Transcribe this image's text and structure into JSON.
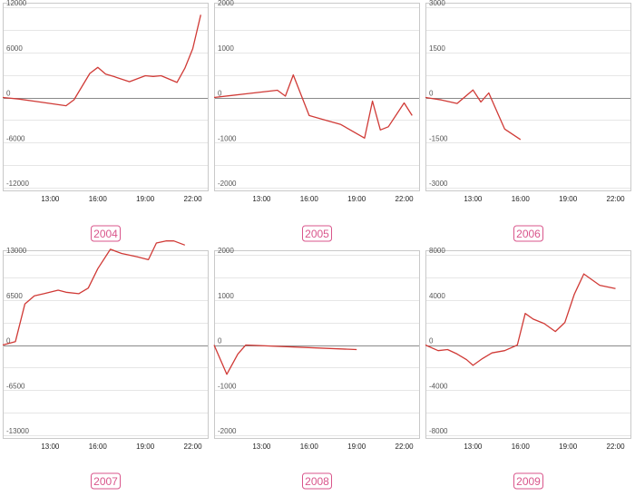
{
  "colors": {
    "line": "#d03a36",
    "grid": "#e6e6e6",
    "zero": "#8a8a8a",
    "border": "#c9c9c9",
    "badge": "#d9558b",
    "tick": "#555555"
  },
  "x_ticks": [
    "13:00",
    "16:00",
    "19:00",
    "22:00"
  ],
  "chart_data": [
    {
      "type": "line",
      "label": "2004",
      "y_ticks": [
        "12000",
        "6000",
        "0",
        "-6000",
        "-12000"
      ],
      "ylim": [
        -12000,
        12000
      ],
      "xlim": [
        10,
        23
      ],
      "x": [
        10,
        11,
        12,
        13,
        14,
        14.5,
        15.5,
        16,
        16.5,
        17,
        18,
        19,
        19.5,
        20,
        21,
        21.5,
        22,
        22.5
      ],
      "y": [
        0,
        -200,
        -500,
        -800,
        -1100,
        -300,
        3200,
        4000,
        3100,
        2800,
        2100,
        2900,
        2800,
        2900,
        2000,
        3900,
        6500,
        11000
      ]
    },
    {
      "type": "line",
      "label": "2005",
      "y_ticks": [
        "2000",
        "1000",
        "0",
        "-1000",
        "-2000"
      ],
      "ylim": [
        -2000,
        2000
      ],
      "xlim": [
        10,
        23
      ],
      "x": [
        10,
        12,
        14,
        14.5,
        15,
        16,
        17,
        18,
        19.5,
        20,
        20.5,
        21,
        22,
        22.5
      ],
      "y": [
        0,
        80,
        160,
        30,
        500,
        -400,
        -500,
        -600,
        -900,
        -80,
        -720,
        -650,
        -120,
        -400
      ]
    },
    {
      "type": "line",
      "label": "2006",
      "y_ticks": [
        "3000",
        "1500",
        "0",
        "-1500",
        "-3000"
      ],
      "ylim": [
        -3000,
        3000
      ],
      "xlim": [
        10,
        23
      ],
      "x": [
        10,
        11,
        12,
        13,
        13.5,
        14,
        15,
        16
      ],
      "y": [
        0,
        -80,
        -200,
        250,
        -150,
        150,
        -1050,
        -1400
      ]
    },
    {
      "type": "line",
      "label": "2007",
      "y_ticks": [
        "13000",
        "6500",
        "0",
        "-6500",
        "-13000"
      ],
      "ylim": [
        -13000,
        13000
      ],
      "xlim": [
        10,
        23
      ],
      "x": [
        10,
        10.8,
        11.4,
        12,
        12.6,
        13.5,
        14,
        14.8,
        15.4,
        16,
        16.8,
        17.5,
        18.5,
        19.2,
        19.7,
        20.3,
        20.8,
        21.5
      ],
      "y": [
        0,
        500,
        5900,
        7100,
        7400,
        7900,
        7600,
        7400,
        8200,
        11000,
        13800,
        13200,
        12700,
        12300,
        14700,
        15000,
        15000,
        14400
      ]
    },
    {
      "type": "line",
      "label": "2008",
      "y_ticks": [
        "2000",
        "1000",
        "0",
        "-1000",
        "-2000"
      ],
      "ylim": [
        -2000,
        2000
      ],
      "xlim": [
        10,
        23
      ],
      "x": [
        10,
        10.8,
        11.5,
        12,
        19
      ],
      "y": [
        0,
        -650,
        -200,
        0,
        -100
      ]
    },
    {
      "type": "line",
      "label": "2009",
      "y_ticks": [
        "8000",
        "4000",
        "0",
        "-4000",
        "-8000"
      ],
      "ylim": [
        -8000,
        8000
      ],
      "xlim": [
        10,
        23
      ],
      "x": [
        10,
        10.8,
        11.4,
        12,
        12.6,
        13,
        13.6,
        14.2,
        15,
        15.8,
        16.3,
        16.8,
        17.5,
        18.2,
        18.8,
        19.4,
        20,
        21,
        22
      ],
      "y": [
        0,
        -500,
        -400,
        -800,
        -1300,
        -1800,
        -1200,
        -700,
        -500,
        0,
        2800,
        2300,
        1900,
        1200,
        2000,
        4500,
        6300,
        5300,
        5000
      ]
    }
  ]
}
